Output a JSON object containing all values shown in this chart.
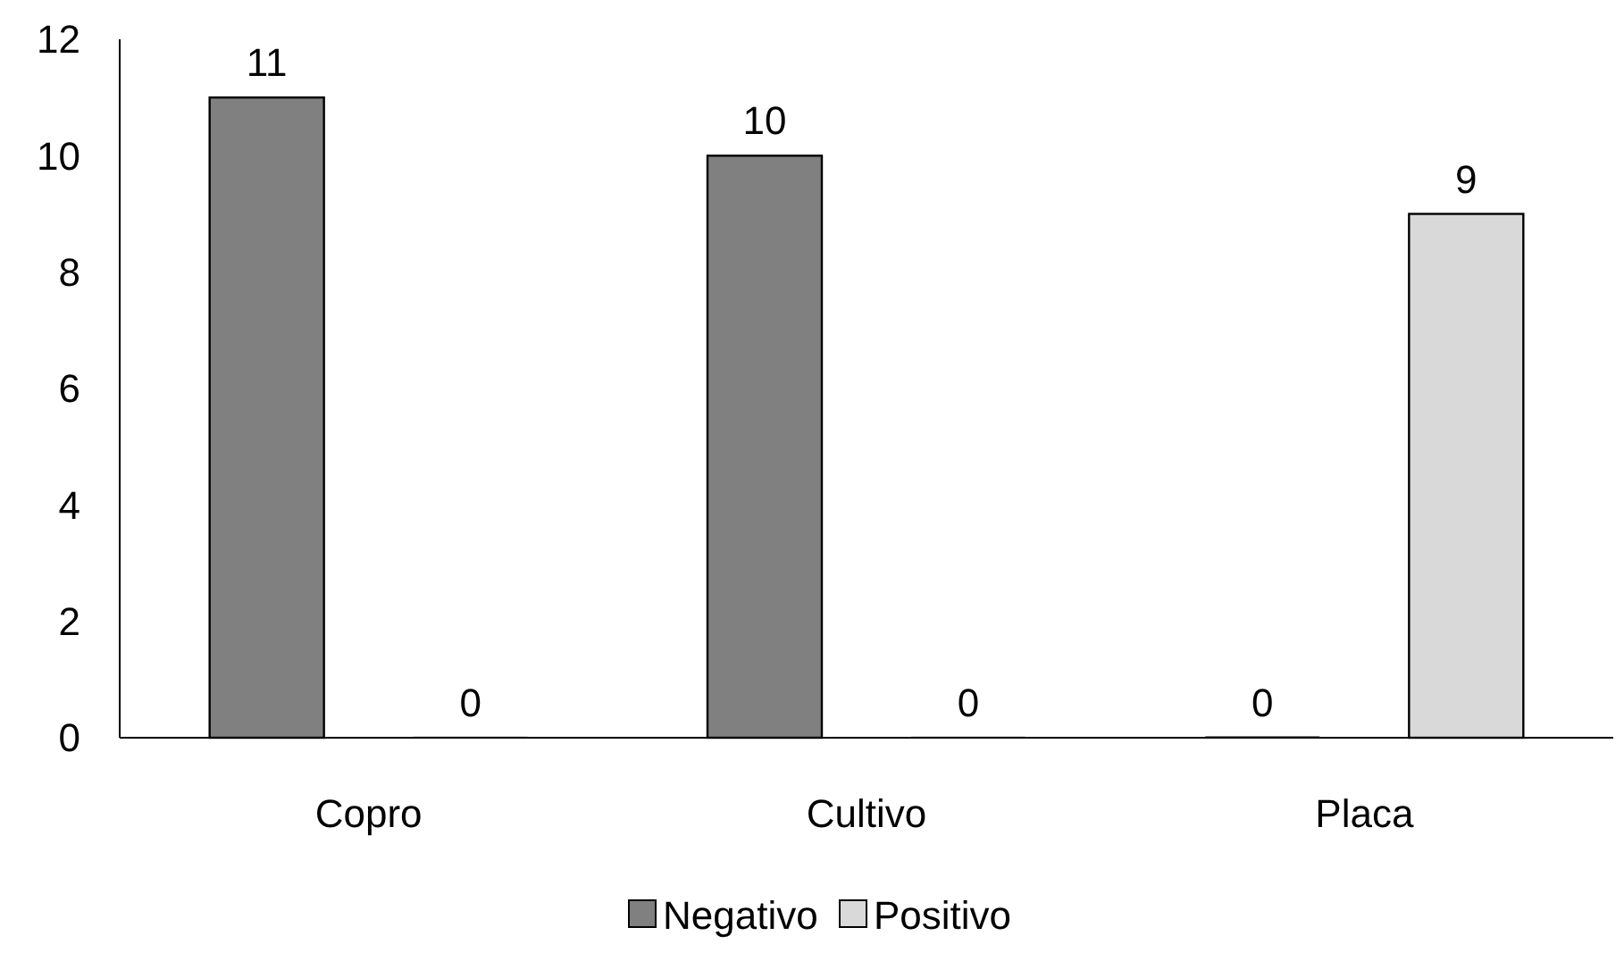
{
  "chart_data": {
    "type": "bar",
    "categories": [
      "Copro",
      "Cultivo",
      "Placa"
    ],
    "series": [
      {
        "name": "Negativo",
        "color": "#808080",
        "values": [
          11,
          10,
          0
        ]
      },
      {
        "name": "Positivo",
        "color": "#d9d9d9",
        "values": [
          0,
          0,
          9
        ]
      }
    ],
    "ylim": [
      0,
      12
    ],
    "yticks": [
      0,
      2,
      4,
      6,
      8,
      10,
      12
    ],
    "grid": false,
    "legend": "bottom",
    "data_labels": true
  }
}
